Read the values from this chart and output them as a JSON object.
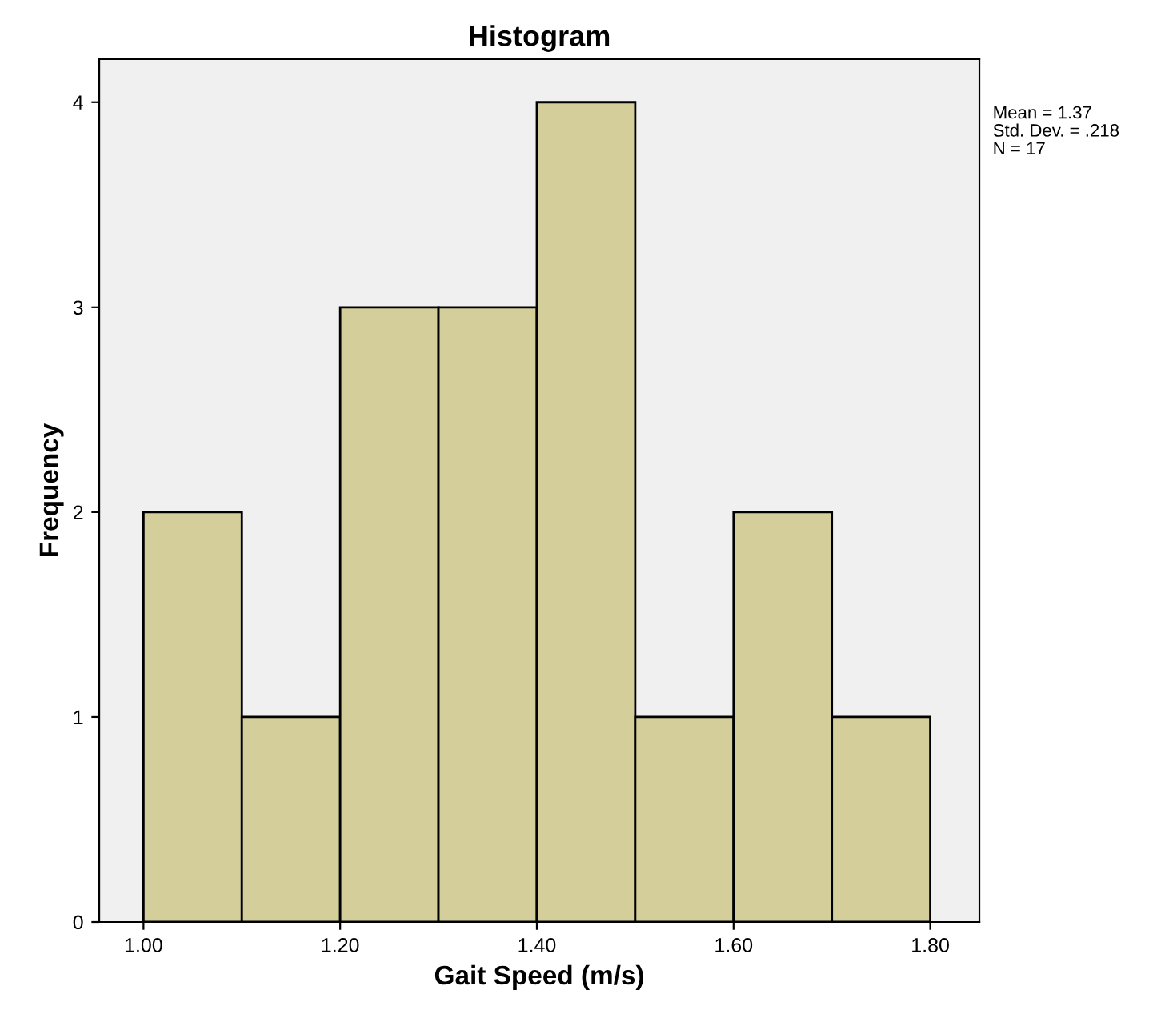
{
  "chart_data": {
    "type": "histogram",
    "title": "Histogram",
    "xlabel": "Gait Speed (m/s)",
    "ylabel": "Frequency",
    "bins": [
      1.0,
      1.1,
      1.2,
      1.3,
      1.4,
      1.5,
      1.6,
      1.7,
      1.8
    ],
    "values": [
      2,
      1,
      3,
      3,
      4,
      1,
      2,
      1
    ],
    "color": "#d3ce9a",
    "xlim": [
      0.955,
      1.85
    ],
    "ylim": [
      0,
      4.21
    ],
    "xticks": [
      {
        "value": 1.0,
        "label": "1.00"
      },
      {
        "value": 1.2,
        "label": "1.20"
      },
      {
        "value": 1.4,
        "label": "1.40"
      },
      {
        "value": 1.6,
        "label": "1.60"
      },
      {
        "value": 1.8,
        "label": "1.80"
      }
    ],
    "yticks": [
      0,
      1,
      2,
      3,
      4
    ],
    "grid": false,
    "annotations": [
      "Mean = 1.37",
      "Std. Dev. = .218",
      "N = 17"
    ]
  }
}
